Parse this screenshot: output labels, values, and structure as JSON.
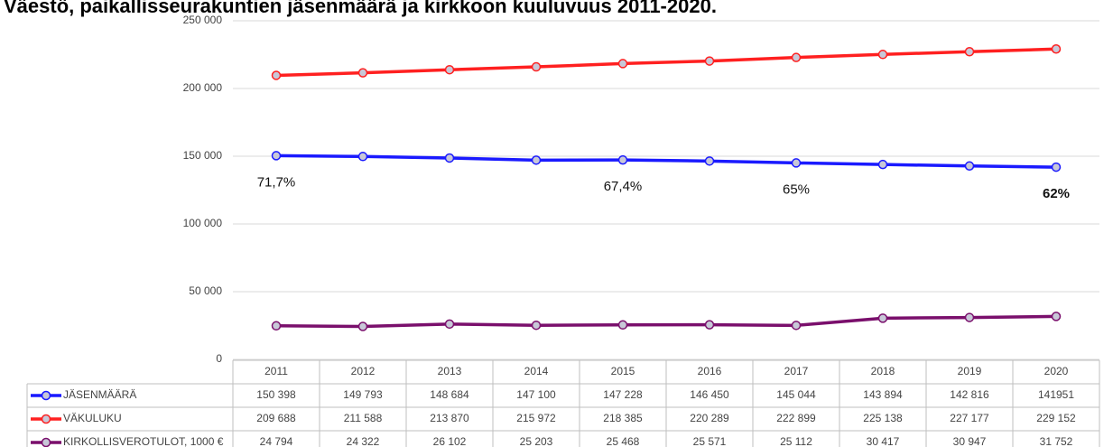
{
  "chart_data": {
    "type": "line",
    "title": "Väestö, paikallisseurakuntien jäsenmäärä ja kirkkoon kuuluvuus 2011-2020.",
    "categories": [
      "2011",
      "2012",
      "2013",
      "2014",
      "2015",
      "2016",
      "2017",
      "2018",
      "2019",
      "2020"
    ],
    "series": [
      {
        "name": "JÄSENMÄÄRÄ",
        "color": "#1a1aff",
        "values": [
          150398,
          149793,
          148684,
          147100,
          147228,
          146450,
          145044,
          143894,
          142816,
          141951
        ],
        "value_labels": [
          "150 398",
          "149 793",
          "148 684",
          "147 100",
          "147 228",
          "146 450",
          "145 044",
          "143 894",
          "142 816",
          "141951"
        ]
      },
      {
        "name": "VÄKULUKU",
        "color": "#ff2020",
        "values": [
          209688,
          211588,
          213870,
          215972,
          218385,
          220289,
          222899,
          225138,
          227177,
          229152
        ],
        "value_labels": [
          "209 688",
          "211 588",
          "213 870",
          "215 972",
          "218 385",
          "220 289",
          "222 899",
          "225 138",
          "227 177",
          "229 152"
        ]
      },
      {
        "name": "KIRKOLLISVEROTULOT, 1000 €",
        "color": "#7a0f6c",
        "values": [
          24794,
          24322,
          26102,
          25203,
          25468,
          25571,
          25112,
          30417,
          30947,
          31752
        ],
        "value_labels": [
          "24 794",
          "24 322",
          "26 102",
          "25 203",
          "25 468",
          "25 571",
          "25 112",
          "30 417",
          "30 947",
          "31 752"
        ]
      }
    ],
    "ylim": [
      0,
      250000
    ],
    "yticks": [
      0,
      {
        "value": 50000,
        "label": "50 000"
      },
      {
        "value": 100000,
        "label": "100 000"
      },
      {
        "value": 150000,
        "label": "150 000"
      },
      {
        "value": 200000,
        "label": "200 000"
      },
      {
        "value": 250000,
        "label": "250 000"
      }
    ],
    "grid": true,
    "annotations": [
      {
        "text": "71,7%",
        "x": "2011",
        "bold": false
      },
      {
        "text": "67,4%",
        "x": "2015",
        "bold": false
      },
      {
        "text": "65%",
        "x": "2017",
        "bold": false
      },
      {
        "text": "62%",
        "x": "2020",
        "bold": true
      }
    ]
  }
}
